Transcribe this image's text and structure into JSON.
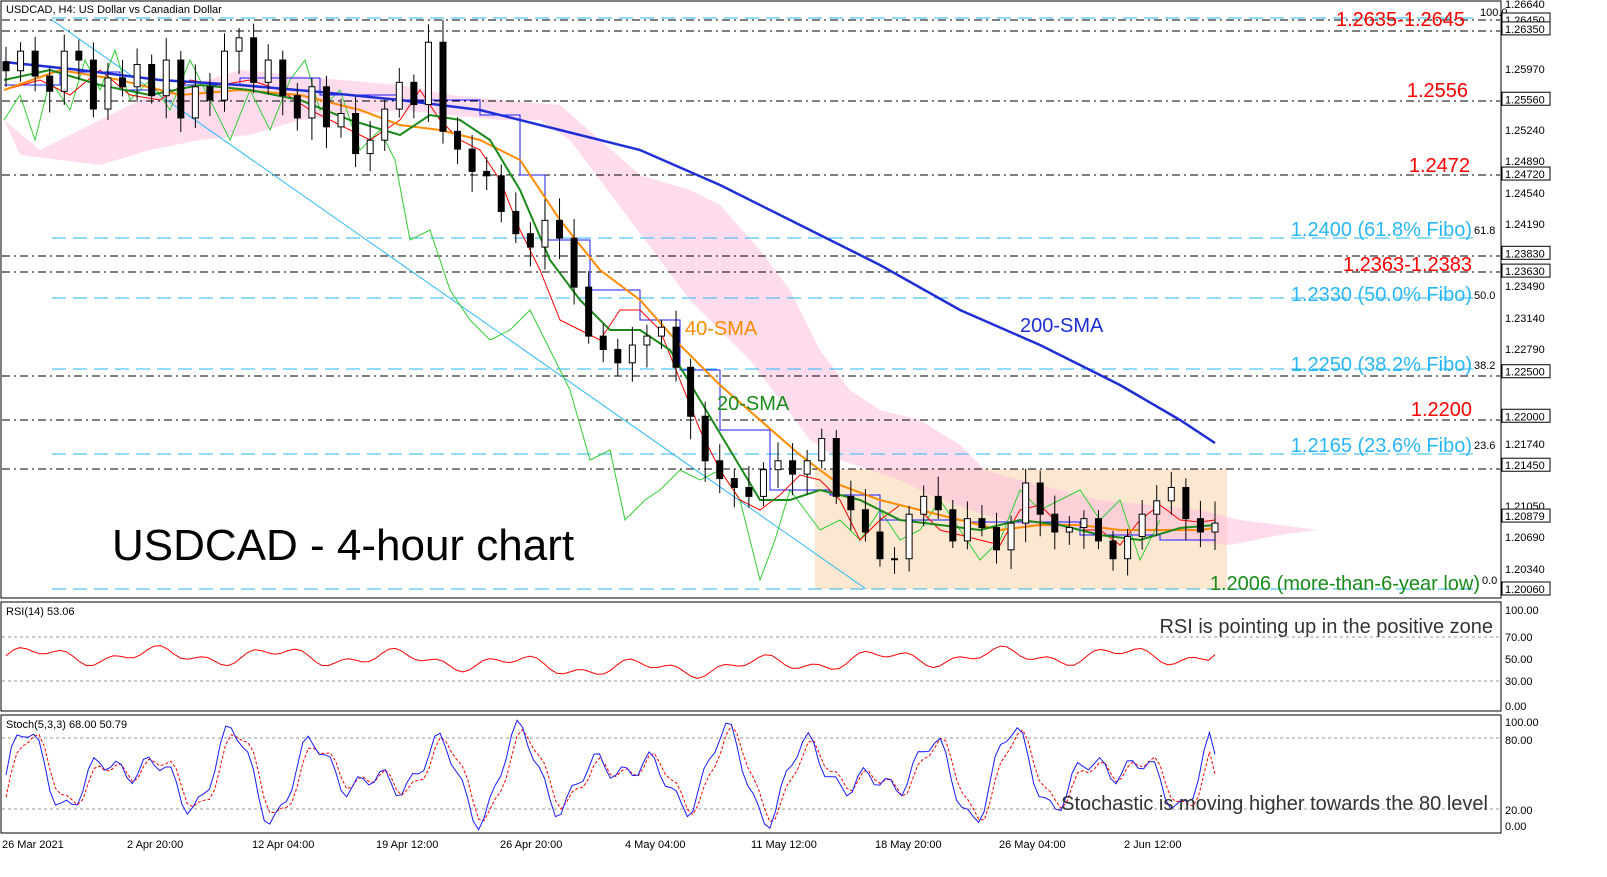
{
  "header": {
    "symbol_label": "USDCAD, H4:  US Dollar vs Canadian Dollar"
  },
  "main_title": "USDCAD - 4-hour chart",
  "rsi_panel": {
    "label": "RSI(14) 53.06",
    "note": "RSI is pointing up in the positive zone"
  },
  "stoch_panel": {
    "label": "Stoch(5,3,3) 68.00 50.79",
    "note": "Stochastic is moving higher towards the 80 level"
  },
  "colors": {
    "resistance_label": "#ff0000",
    "fibo": "#29b6f6",
    "sma20": "#1a8a1a",
    "sma40": "#ff8c00",
    "sma200": "#1e2fd6",
    "tenkan": "#ff0000",
    "kijun": "#1a1aff",
    "chikou": "#33cc33",
    "cloud": "#ff69b4",
    "box": "#fbe3c8",
    "rsi_line": "#ff0000",
    "stoch_main": "#1a1aff",
    "stoch_signal": "#ff0000"
  },
  "chart_data": [
    {
      "type": "candlestick",
      "title": "USDCAD - 4-hour chart",
      "y_range": [
        1.2006,
        1.2664
      ],
      "x_tick_labels": [
        "26 Mar 2021",
        "2 Apr 20:00",
        "12 Apr 04:00",
        "19 Apr 12:00",
        "26 Apr 20:00",
        "4 May 04:00",
        "11 May 12:00",
        "18 May 20:00",
        "26 May 04:00",
        "2 Jun 12:00"
      ],
      "y_tick_labels": [
        "1.26640",
        "1.25970",
        "1.25240",
        "1.24890",
        "1.24540",
        "1.24190",
        "1.23490",
        "1.23140",
        "1.22790",
        "1.21740",
        "1.21050",
        "1.20690",
        "1.20340"
      ],
      "price_boxes": [
        "1.26450",
        "1.26350",
        "1.25560",
        "1.24720",
        "1.23830",
        "1.23630",
        "1.22500",
        "1.22000",
        "1.21450",
        "1.20879",
        "1.20060"
      ],
      "levels": [
        {
          "label": "1.2635-1.2645",
          "price": 1.264,
          "kind": "resistance"
        },
        {
          "label": "1.2556",
          "price": 1.2556,
          "kind": "resistance"
        },
        {
          "label": "1.2472",
          "price": 1.2472,
          "kind": "resistance"
        },
        {
          "label": "1.2400 (61.8% Fibo)",
          "price": 1.24,
          "kind": "fibo",
          "pct": "61.8"
        },
        {
          "label": "1.2363-1.2383",
          "price": 1.2373,
          "kind": "resistance"
        },
        {
          "label": "1.2330 (50.0% Fibo)",
          "price": 1.233,
          "kind": "fibo",
          "pct": "50.0"
        },
        {
          "label": "1.2250 (38.2% Fibo)",
          "price": 1.225,
          "kind": "fibo",
          "pct": "38.2"
        },
        {
          "label": "1.2200",
          "price": 1.22,
          "kind": "resistance"
        },
        {
          "label": "1.2165 (23.6% Fibo)",
          "price": 1.2165,
          "kind": "fibo",
          "pct": "23.6"
        },
        {
          "label": "1.2006 (more-than-6-year low)",
          "price": 1.2006,
          "kind": "support",
          "pct": "0.0"
        }
      ],
      "fibo_top_pct": "100.0",
      "range_box": {
        "from_price": 1.2006,
        "to_price": 1.2145
      },
      "series_labels": [
        "40-SMA",
        "20-SMA",
        "200-SMA"
      ],
      "closes": [
        1.2588,
        1.261,
        1.2582,
        1.2565,
        1.261,
        1.26,
        1.2545,
        1.258,
        1.257,
        1.2595,
        1.256,
        1.26,
        1.2535,
        1.257,
        1.2555,
        1.261,
        1.2625,
        1.2575,
        1.26,
        1.256,
        1.2535,
        1.257,
        1.2525,
        1.254,
        1.2495,
        1.251,
        1.2545,
        1.2575,
        1.255,
        1.262,
        1.252,
        1.25,
        1.2475,
        1.247,
        1.243,
        1.2405,
        1.239,
        1.242,
        1.24,
        1.2345,
        1.229,
        1.2275,
        1.226,
        1.228,
        1.229,
        1.23,
        1.2255,
        1.22,
        1.215,
        1.213,
        1.212,
        1.211,
        1.214,
        1.215,
        1.2135,
        1.215,
        1.2175,
        1.211,
        1.2095,
        1.207,
        1.204,
        1.204,
        1.209,
        1.211,
        1.2095,
        1.206,
        1.2085,
        1.2075,
        1.205,
        1.208,
        1.2125,
        1.209,
        1.207,
        1.2075,
        1.2085,
        1.206,
        1.204,
        1.2065,
        1.209,
        1.2105,
        1.212,
        1.2085,
        1.207,
        1.208
      ],
      "sma200": [
        1.2598,
        1.2595,
        1.259,
        1.2583,
        1.2576,
        1.2568,
        1.256,
        1.2548,
        1.2536,
        1.2522,
        1.2505,
        1.2485,
        1.246,
        1.243,
        1.24,
        1.237,
        1.2338,
        1.2305,
        1.2272,
        1.224,
        1.2205,
        1.217
      ],
      "rsi": {
        "y_ticks": [
          "100.00",
          "70.00",
          "50.00",
          "30.00",
          "0.00"
        ],
        "last": 53.06
      },
      "stoch": {
        "y_ticks": [
          "100.00",
          "80.00",
          "20.00",
          "0.00"
        ],
        "main_last": 68.0,
        "signal_last": 50.79
      }
    }
  ]
}
